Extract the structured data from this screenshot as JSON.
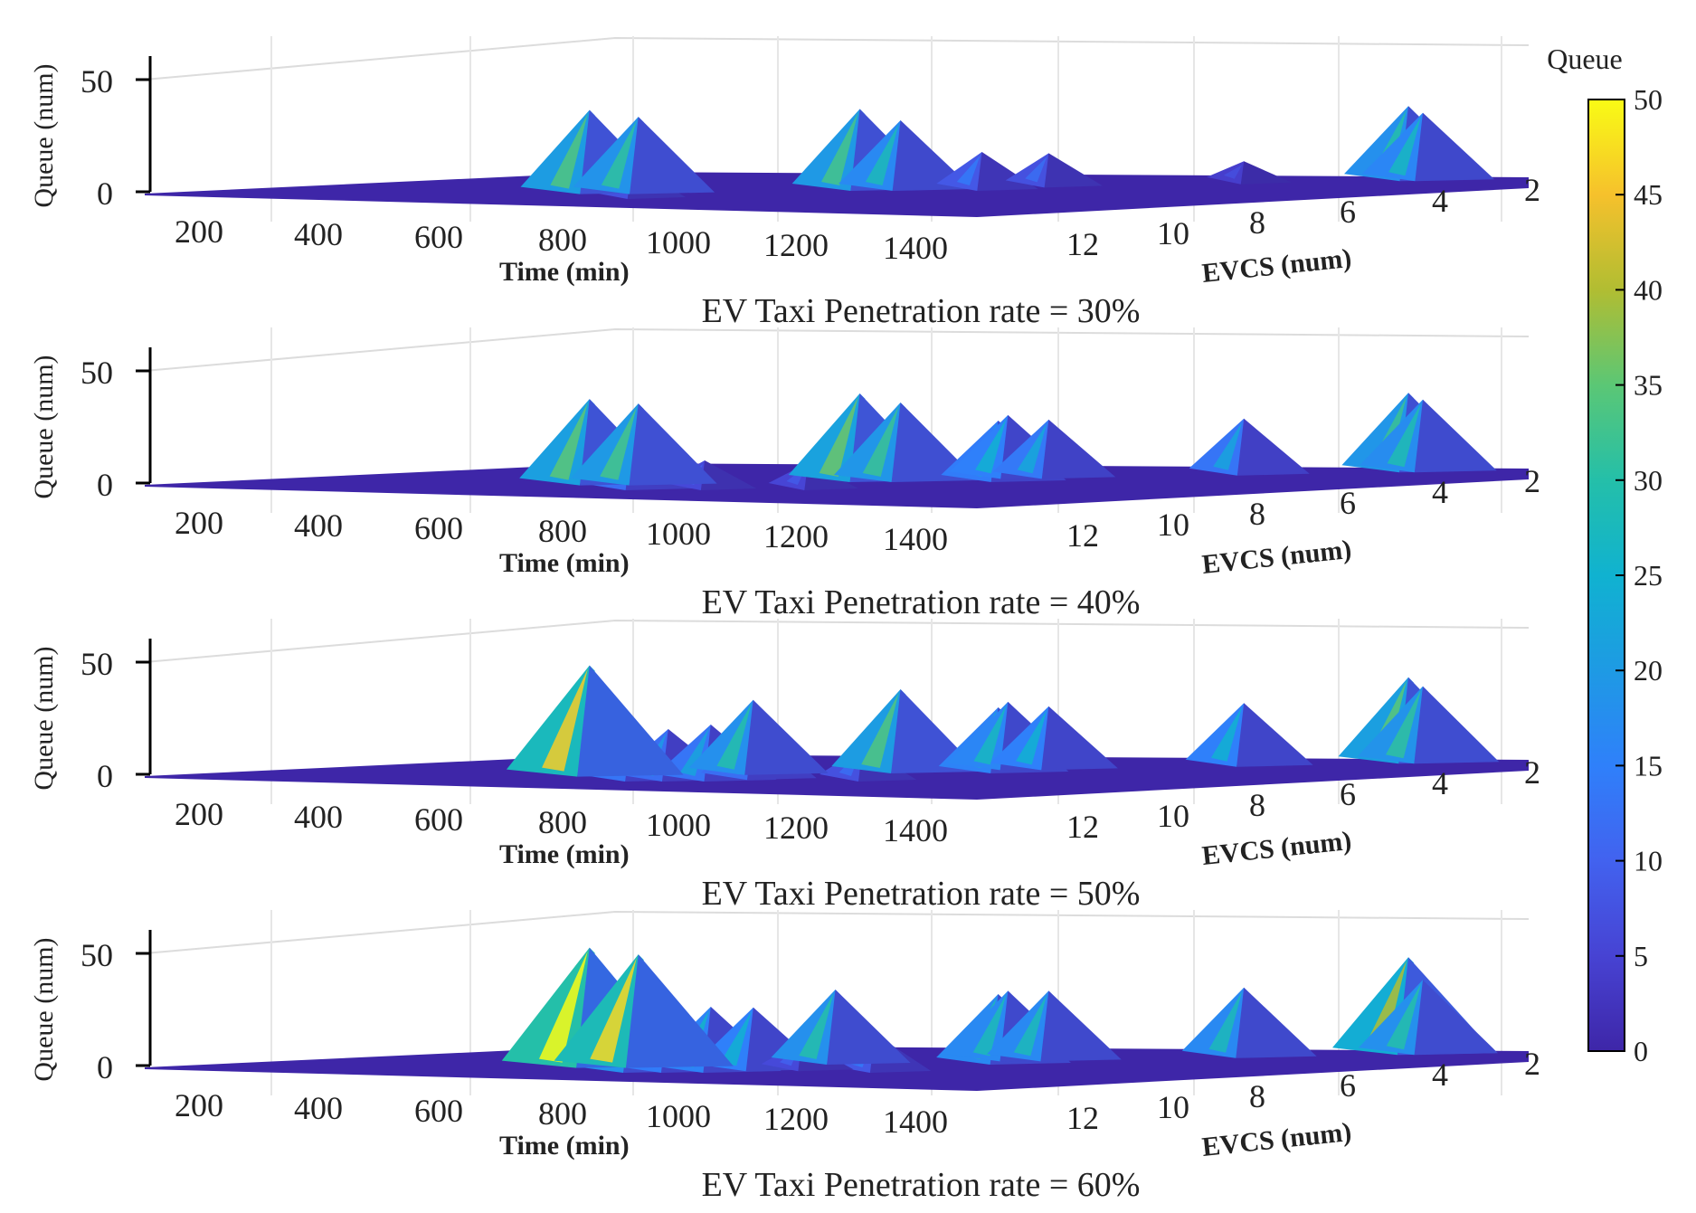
{
  "chart_data": {
    "type": "surface3d",
    "colorbar": {
      "title": "Queue",
      "ticks": [
        0,
        5,
        10,
        15,
        20,
        25,
        30,
        35,
        40,
        45,
        50
      ],
      "range": [
        0,
        50
      ],
      "colors": [
        "#3e26a8",
        "#4743d3",
        "#4262ef",
        "#2f80fa",
        "#1e9ae4",
        "#10b2d0",
        "#24bfa9",
        "#5bc775",
        "#b1bd32",
        "#f6c12c",
        "#f9fb15"
      ]
    },
    "panels": [
      {
        "title": "EV Taxi Penetration rate = 30%",
        "zlabel": "Queue (num)",
        "xlabel": "Time (min)",
        "ylabel": "EVCS (num)",
        "z_ticks": [
          "50",
          "0"
        ],
        "x_ticks": [
          "200",
          "400",
          "600",
          "800",
          "1000",
          "1200",
          "1400"
        ],
        "y_ticks": [
          "12",
          "10",
          "8",
          "6",
          "4",
          "2"
        ],
        "peaks": [
          {
            "t": 1000,
            "evcs": 13,
            "queue": 12
          },
          {
            "t": 1310,
            "evcs": 2,
            "queue": 30
          },
          {
            "t": 1330,
            "evcs": 2,
            "queue": 27
          },
          {
            "t": 1100,
            "evcs": 10,
            "queue": 34
          },
          {
            "t": 1160,
            "evcs": 10,
            "queue": 31
          },
          {
            "t": 1230,
            "evcs": 8,
            "queue": 33
          },
          {
            "t": 1280,
            "evcs": 8,
            "queue": 28
          },
          {
            "t": 1380,
            "evcs": 8,
            "queue": 14
          },
          {
            "t": 1260,
            "evcs": 6,
            "queue": 12
          },
          {
            "t": 1310,
            "evcs": 4,
            "queue": 7
          }
        ]
      },
      {
        "title": "EV Taxi Penetration rate = 40%",
        "zlabel": "Queue (num)",
        "xlabel": "Time (min)",
        "ylabel": "EVCS (num)",
        "z_ticks": [
          "50",
          "0"
        ],
        "x_ticks": [
          "200",
          "400",
          "600",
          "800",
          "1000",
          "1200",
          "1400"
        ],
        "y_ticks": [
          "12",
          "10",
          "8",
          "6",
          "4",
          "2"
        ],
        "peaks": [
          {
            "t": 1000,
            "evcs": 13,
            "queue": 20
          },
          {
            "t": 1120,
            "evcs": 13,
            "queue": 10
          },
          {
            "t": 1310,
            "evcs": 2,
            "queue": 32
          },
          {
            "t": 1330,
            "evcs": 2,
            "queue": 29
          },
          {
            "t": 1290,
            "evcs": 13,
            "queue": 9
          },
          {
            "t": 1100,
            "evcs": 10,
            "queue": 35
          },
          {
            "t": 1160,
            "evcs": 10,
            "queue": 33
          },
          {
            "t": 1230,
            "evcs": 8,
            "queue": 36
          },
          {
            "t": 1280,
            "evcs": 8,
            "queue": 32
          },
          {
            "t": 1400,
            "evcs": 8,
            "queue": 24
          },
          {
            "t": 1210,
            "evcs": 6,
            "queue": 25
          },
          {
            "t": 1260,
            "evcs": 6,
            "queue": 23
          },
          {
            "t": 1310,
            "evcs": 4,
            "queue": 22
          }
        ]
      },
      {
        "title": "EV Taxi Penetration rate = 50%",
        "zlabel": "Queue (num)",
        "xlabel": "Time (min)",
        "ylabel": "EVCS (num)",
        "z_ticks": [
          "50",
          "0"
        ],
        "x_ticks": [
          "200",
          "400",
          "600",
          "800",
          "1000",
          "1200",
          "1400"
        ],
        "y_ticks": [
          "12",
          "10",
          "8",
          "6",
          "4",
          "2"
        ],
        "peaks": [
          {
            "t": 1000,
            "evcs": 13,
            "queue": 22
          },
          {
            "t": 1060,
            "evcs": 13,
            "queue": 20
          },
          {
            "t": 1130,
            "evcs": 13,
            "queue": 22
          },
          {
            "t": 1200,
            "evcs": 12,
            "queue": 20
          },
          {
            "t": 1310,
            "evcs": 2,
            "queue": 35
          },
          {
            "t": 1330,
            "evcs": 2,
            "queue": 31
          },
          {
            "t": 1380,
            "evcs": 13,
            "queue": 12
          },
          {
            "t": 1100,
            "evcs": 10,
            "queue": 46
          },
          {
            "t": 1200,
            "evcs": 9,
            "queue": 30
          },
          {
            "t": 1280,
            "evcs": 8,
            "queue": 34
          },
          {
            "t": 1400,
            "evcs": 8,
            "queue": 26
          },
          {
            "t": 1210,
            "evcs": 6,
            "queue": 27
          },
          {
            "t": 1260,
            "evcs": 6,
            "queue": 25
          },
          {
            "t": 1310,
            "evcs": 4,
            "queue": 25
          }
        ]
      },
      {
        "title": "EV Taxi Penetration rate = 60%",
        "zlabel": "Queue (num)",
        "xlabel": "Time (min)",
        "ylabel": "EVCS (num)",
        "z_ticks": [
          "50",
          "0"
        ],
        "x_ticks": [
          "200",
          "400",
          "600",
          "800",
          "1000",
          "1200",
          "1400"
        ],
        "y_ticks": [
          "12",
          "10",
          "8",
          "6",
          "4",
          "2"
        ],
        "peaks": [
          {
            "t": 1000,
            "evcs": 13,
            "queue": 30
          },
          {
            "t": 1060,
            "evcs": 13,
            "queue": 24
          },
          {
            "t": 1130,
            "evcs": 13,
            "queue": 26
          },
          {
            "t": 1200,
            "evcs": 12,
            "queue": 25
          },
          {
            "t": 1310,
            "evcs": 2,
            "queue": 40
          },
          {
            "t": 1330,
            "evcs": 2,
            "queue": 30
          },
          {
            "t": 1280,
            "evcs": 12,
            "queue": 10
          },
          {
            "t": 1400,
            "evcs": 13,
            "queue": 14
          },
          {
            "t": 1100,
            "evcs": 10,
            "queue": 50
          },
          {
            "t": 1160,
            "evcs": 10,
            "queue": 47
          },
          {
            "t": 1200,
            "evcs": 8,
            "queue": 30
          },
          {
            "t": 1400,
            "evcs": 8,
            "queue": 28
          },
          {
            "t": 1210,
            "evcs": 6,
            "queue": 28
          },
          {
            "t": 1260,
            "evcs": 6,
            "queue": 28
          },
          {
            "t": 1310,
            "evcs": 4,
            "queue": 28
          }
        ]
      }
    ]
  }
}
